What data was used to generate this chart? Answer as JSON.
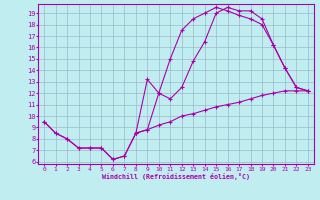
{
  "xlabel": "Windchill (Refroidissement éolien,°C)",
  "bg_color": "#c0eef0",
  "grid_color": "#a0b8cc",
  "line_color": "#aa00aa",
  "xlim": [
    -0.5,
    23.5
  ],
  "ylim": [
    5.8,
    19.8
  ],
  "xticks": [
    0,
    1,
    2,
    3,
    4,
    5,
    6,
    7,
    8,
    9,
    10,
    11,
    12,
    13,
    14,
    15,
    16,
    17,
    18,
    19,
    20,
    21,
    22,
    23
  ],
  "yticks": [
    6,
    7,
    8,
    9,
    10,
    11,
    12,
    13,
    14,
    15,
    16,
    17,
    18,
    19
  ],
  "curve1_x": [
    0,
    1,
    2,
    3,
    4,
    5,
    6,
    7,
    8,
    9,
    10,
    11,
    12,
    13,
    14,
    15,
    16,
    17,
    18,
    19,
    20,
    21,
    22,
    23
  ],
  "curve1_y": [
    9.5,
    8.5,
    8.0,
    7.2,
    7.2,
    7.2,
    6.2,
    6.5,
    8.5,
    13.2,
    12.0,
    11.5,
    12.5,
    14.8,
    16.5,
    19.0,
    19.5,
    19.2,
    19.2,
    18.5,
    16.2,
    14.2,
    12.5,
    12.2
  ],
  "curve2_x": [
    0,
    1,
    2,
    3,
    4,
    5,
    6,
    7,
    8,
    9,
    10,
    11,
    12,
    13,
    14,
    15,
    16,
    17,
    18,
    19,
    20,
    21,
    22,
    23
  ],
  "curve2_y": [
    9.5,
    8.5,
    8.0,
    7.2,
    7.2,
    7.2,
    6.2,
    6.5,
    8.5,
    8.8,
    9.2,
    9.5,
    10.0,
    10.2,
    10.5,
    10.8,
    11.0,
    11.2,
    11.5,
    11.8,
    12.0,
    12.2,
    12.2,
    12.2
  ],
  "curve3_x": [
    8,
    9,
    10,
    11,
    12,
    13,
    14,
    15,
    16,
    17,
    18,
    19,
    20,
    21,
    22,
    23
  ],
  "curve3_y": [
    8.5,
    8.8,
    12.0,
    15.0,
    17.5,
    18.5,
    19.0,
    19.5,
    19.2,
    18.8,
    18.5,
    18.0,
    16.2,
    14.2,
    12.5,
    12.2
  ]
}
